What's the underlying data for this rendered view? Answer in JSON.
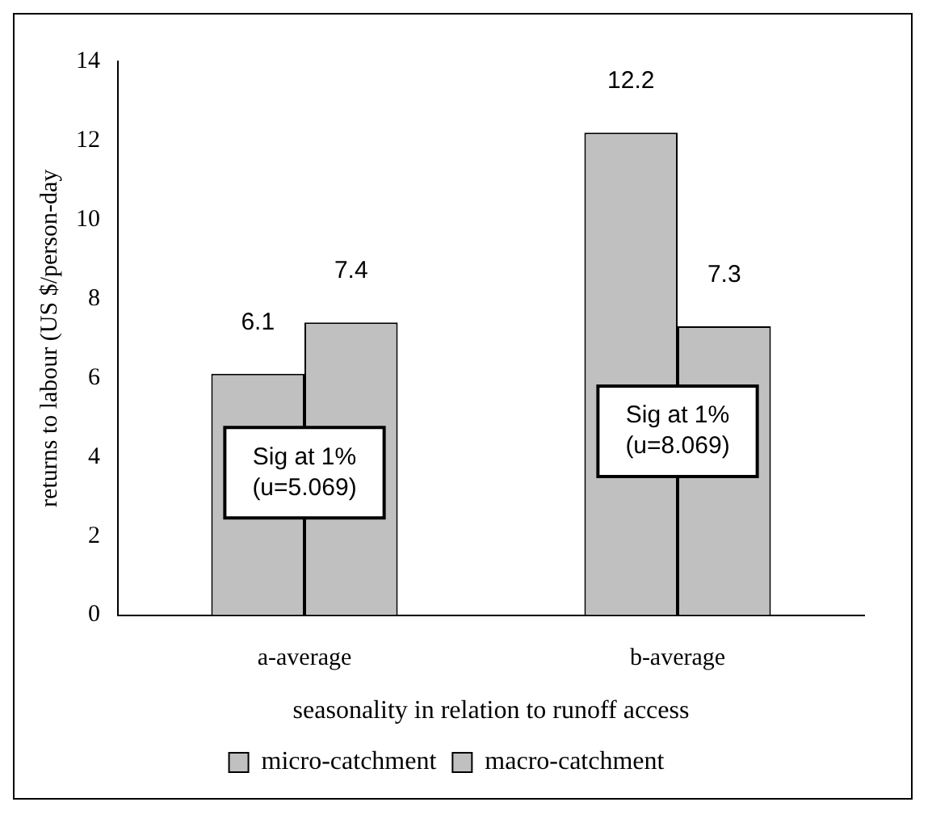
{
  "chart_data": {
    "type": "bar",
    "xlabel": "seasonality in relation to runoff access",
    "ylabel": "returns to labour (US $/person-day",
    "categories": [
      "a-average",
      "b-average"
    ],
    "series": [
      {
        "name": "micro-catchment",
        "color": "#c0c0c0",
        "values": [
          6.1,
          12.2
        ]
      },
      {
        "name": "macro-catchment",
        "color": "#c0c0c0",
        "values": [
          7.4,
          7.3
        ]
      }
    ],
    "ylim": [
      0,
      14
    ],
    "yticks": [
      0,
      2,
      4,
      6,
      8,
      10,
      12,
      14
    ],
    "grid": false,
    "legend": "bottom",
    "data_labels": true,
    "annotations": [
      {
        "text": "Sig at 1%\n(u=5.069)",
        "x": "a-average",
        "y": 3.6
      },
      {
        "text": "Sig at 1%\n(u=8.069)",
        "x": "b-average",
        "y": 4.65
      }
    ]
  }
}
